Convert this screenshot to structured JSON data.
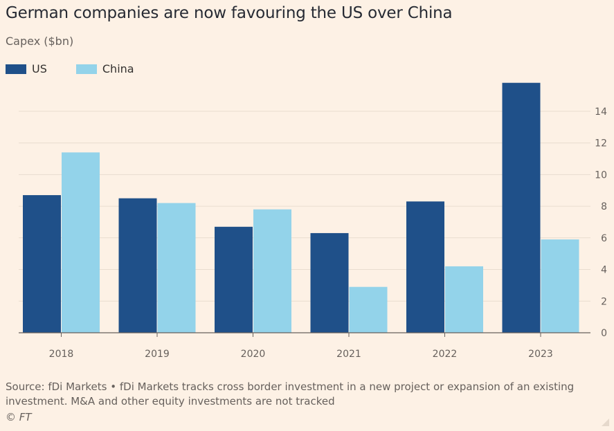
{
  "title": "German companies are now favouring the US over China",
  "subtitle": "Capex ($bn)",
  "legend": [
    {
      "label": "US",
      "color": "#1f5089"
    },
    {
      "label": "China",
      "color": "#93d3ea"
    }
  ],
  "footer": {
    "source": "Source: fDi Markets • fDi Markets tracks cross border investment in a new project or expansion of an existing investment. M&A and other equity investments are not tracked",
    "copyright": "© FT"
  },
  "chart_data": {
    "type": "bar",
    "title": "German companies are now favouring the US over China",
    "ylabel": "Capex ($bn)",
    "xlabel": "",
    "categories": [
      "2018",
      "2019",
      "2020",
      "2021",
      "2022",
      "2023"
    ],
    "series": [
      {
        "name": "US",
        "color": "#1f5089",
        "values": [
          8.7,
          8.5,
          6.7,
          6.3,
          8.3,
          15.8
        ]
      },
      {
        "name": "China",
        "color": "#93d3ea",
        "values": [
          11.4,
          8.2,
          7.8,
          2.9,
          4.2,
          5.9
        ]
      }
    ],
    "ylim": [
      0,
      16
    ],
    "yticks": [
      0,
      2,
      4,
      6,
      8,
      10,
      12,
      14
    ],
    "y_axis_position": "right",
    "grid": true,
    "legend_position": "top-left"
  }
}
